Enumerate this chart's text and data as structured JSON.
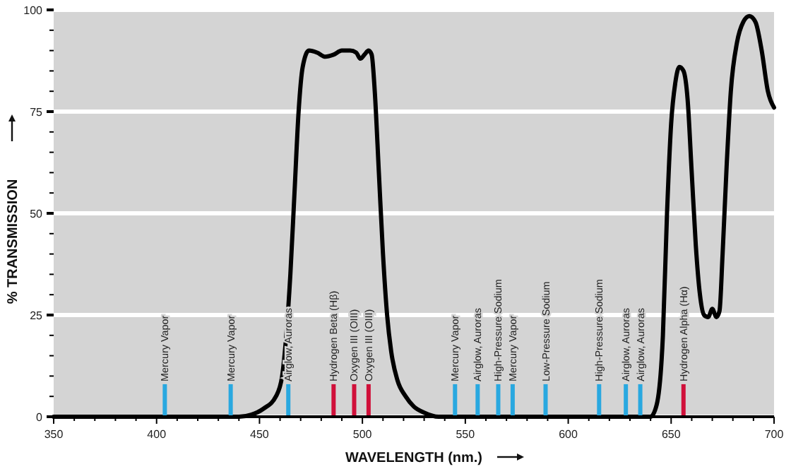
{
  "chart_data": {
    "type": "line",
    "xlabel": "WAVELENGTH (nm.)",
    "ylabel": "% TRANSMISSION",
    "xlim": [
      350,
      700
    ],
    "ylim": [
      0,
      100
    ],
    "xticks": [
      350,
      {
        "value": 360,
        "label": null
      },
      {
        "value": 370,
        "label": null
      },
      {
        "value": 380,
        "label": null
      },
      {
        "value": 390,
        "label": null
      },
      400,
      {
        "value": 410,
        "label": null
      },
      {
        "value": 420,
        "label": null
      },
      {
        "value": 430,
        "label": null
      },
      {
        "value": 440,
        "label": null
      },
      450,
      {
        "value": 460,
        "label": null
      },
      {
        "value": 470,
        "label": null
      },
      {
        "value": 480,
        "label": null
      },
      {
        "value": 490,
        "label": null
      },
      500,
      {
        "value": 510,
        "label": null
      },
      {
        "value": 520,
        "label": null
      },
      {
        "value": 530,
        "label": null
      },
      {
        "value": 540,
        "label": null
      },
      550,
      {
        "value": 560,
        "label": null
      },
      {
        "value": 570,
        "label": null
      },
      {
        "value": 580,
        "label": null
      },
      {
        "value": 590,
        "label": null
      },
      600,
      {
        "value": 610,
        "label": null
      },
      {
        "value": 620,
        "label": null
      },
      {
        "value": 630,
        "label": null
      },
      {
        "value": 640,
        "label": null
      },
      650,
      {
        "value": 660,
        "label": null
      },
      {
        "value": 670,
        "label": null
      },
      {
        "value": 680,
        "label": null
      },
      {
        "value": 690,
        "label": null
      },
      700
    ],
    "yticks": [
      0,
      {
        "value": 5,
        "label": null
      },
      {
        "value": 10,
        "label": null
      },
      {
        "value": 15,
        "label": null
      },
      {
        "value": 20,
        "label": null
      },
      25,
      {
        "value": 30,
        "label": null
      },
      {
        "value": 35,
        "label": null
      },
      {
        "value": 40,
        "label": null
      },
      {
        "value": 45,
        "label": null
      },
      50,
      {
        "value": 55,
        "label": null
      },
      {
        "value": 60,
        "label": null
      },
      {
        "value": 65,
        "label": null
      },
      {
        "value": 70,
        "label": null
      },
      75,
      {
        "value": 80,
        "label": null
      },
      {
        "value": 85,
        "label": null
      },
      {
        "value": 90,
        "label": null
      },
      {
        "value": 95,
        "label": null
      },
      100
    ],
    "grid": "y",
    "marker": "none",
    "line_style": "solid",
    "series": [
      {
        "color": "#000000",
        "x": [
          350,
          440,
          446,
          452,
          458,
          461,
          463,
          465,
          467,
          469,
          471,
          474,
          478,
          482,
          486,
          490,
          494,
          497,
          499,
          501,
          503,
          504.5,
          506,
          508,
          510,
          512,
          514,
          517,
          521,
          525,
          530,
          537,
          640,
          643,
          646,
          648,
          650,
          652,
          654,
          656,
          658,
          660,
          662,
          664,
          666,
          668,
          670,
          672,
          673.5,
          675,
          677,
          679,
          682,
          685,
          688,
          691,
          694,
          697,
          700
        ],
        "values": [
          0,
          0,
          0.5,
          2,
          5,
          10,
          20,
          35,
          55,
          75,
          86,
          90,
          89.5,
          88.5,
          89,
          90,
          90,
          89.5,
          88,
          89,
          90,
          89,
          80,
          60,
          40,
          25,
          16,
          9,
          5,
          2.5,
          1,
          0,
          0,
          3,
          20,
          50,
          72,
          82,
          86,
          85,
          78,
          60,
          42,
          30,
          25,
          24.5,
          26.5,
          24.5,
          26,
          40,
          62,
          80,
          92,
          97,
          98.5,
          97,
          90,
          80,
          76
        ]
      }
    ],
    "ref_lines": [
      {
        "axis": "x",
        "value": 404,
        "label": "Mercury Vapor",
        "color": "#29a8e0"
      },
      {
        "axis": "x",
        "value": 436,
        "label": "Mercury Vapor",
        "color": "#29a8e0"
      },
      {
        "axis": "x",
        "value": 464,
        "label": "Airglow, Auroras",
        "color": "#29a8e0"
      },
      {
        "axis": "x",
        "value": 486,
        "label": "Hydrogen Beta (Hβ)",
        "color": "#d0103a"
      },
      {
        "axis": "x",
        "value": 496,
        "label": "Oxygen III (OIII)",
        "color": "#d0103a"
      },
      {
        "axis": "x",
        "value": 503,
        "label": "Oxygen III (OIII)",
        "color": "#d0103a"
      },
      {
        "axis": "x",
        "value": 545,
        "label": "Mercury Vapor",
        "color": "#29a8e0"
      },
      {
        "axis": "x",
        "value": 556,
        "label": "Airglow, Auroras",
        "color": "#29a8e0"
      },
      {
        "axis": "x",
        "value": 566,
        "label": "High-Pressure Sodium",
        "color": "#29a8e0"
      },
      {
        "axis": "x",
        "value": 573,
        "label": "Mercury Vapor",
        "color": "#29a8e0"
      },
      {
        "axis": "x",
        "value": 589,
        "label": "Low-Pressure Sodium",
        "color": "#29a8e0"
      },
      {
        "axis": "x",
        "value": 615,
        "label": "High-Pressure Sodium",
        "color": "#29a8e0"
      },
      {
        "axis": "x",
        "value": 628,
        "label": "Airglow, Auroras",
        "color": "#29a8e0"
      },
      {
        "axis": "x",
        "value": 635,
        "label": "Airglow, Auroras",
        "color": "#29a8e0"
      },
      {
        "axis": "x",
        "value": 656,
        "label": "Hydrogen Alpha (Hα)",
        "color": "#d0103a"
      }
    ]
  }
}
